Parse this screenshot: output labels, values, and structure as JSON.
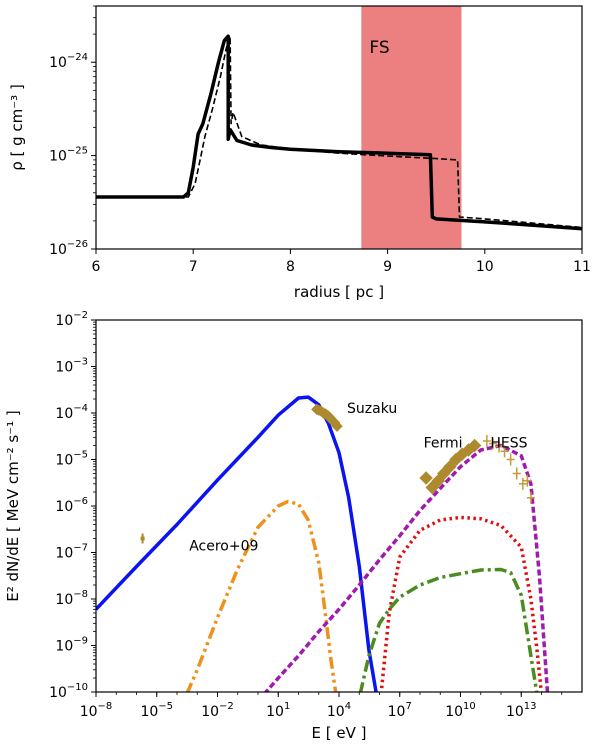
{
  "chart_data": [
    {
      "type": "line",
      "xlabel": "radius [ pc ]",
      "ylabel": "ρ [ g cm⁻³ ]",
      "xlim": [
        6,
        11
      ],
      "ylim": [
        1e-26,
        4e-24
      ],
      "yscale": "log",
      "grid": false,
      "xticks": [
        {
          "v": 6,
          "label": "6"
        },
        {
          "v": 7,
          "label": "7"
        },
        {
          "v": 8,
          "label": "8"
        },
        {
          "v": 9,
          "label": "9"
        },
        {
          "v": 10,
          "label": "10"
        },
        {
          "v": 11,
          "label": "11"
        }
      ],
      "yticks": [
        {
          "v": 1e-26,
          "base": "10",
          "exp": "−26"
        },
        {
          "v": 1e-25,
          "base": "10",
          "exp": "−25"
        },
        {
          "v": 1e-24,
          "base": "10",
          "exp": "−24"
        }
      ],
      "shaded_region": {
        "x0": 8.73,
        "x1": 9.76,
        "label": "FS",
        "color": "#ec8080",
        "label_color": "#e0201a"
      },
      "series": [
        {
          "style": "solid",
          "color": "#000000",
          "x": [
            6.0,
            6.9,
            6.95,
            7.0,
            7.05,
            7.1,
            7.18,
            7.26,
            7.32,
            7.36,
            7.36,
            7.38,
            7.45,
            7.6,
            7.8,
            8.0,
            8.5,
            9.0,
            9.44,
            9.46,
            9.5,
            10.0,
            10.5,
            11.0
          ],
          "y": [
            3.6e-26,
            3.6e-26,
            4e-26,
            7.5e-26,
            1.7e-25,
            2.2e-25,
            4.5e-25,
            1e-24,
            1.7e-24,
            1.9e-24,
            1.5e-25,
            1.9e-25,
            1.45e-25,
            1.3e-25,
            1.22e-25,
            1.17e-25,
            1.1e-25,
            1.06e-25,
            1.02e-25,
            2.2e-26,
            2.1e-26,
            1.95e-26,
            1.8e-26,
            1.65e-26
          ]
        },
        {
          "style": "dashed",
          "color": "#000000",
          "x": [
            6.0,
            6.95,
            7.02,
            7.08,
            7.12,
            7.2,
            7.28,
            7.34,
            7.38,
            7.39,
            7.41,
            7.5,
            7.7,
            8.0,
            8.5,
            9.0,
            9.5,
            9.72,
            9.74,
            10.0,
            11.0
          ],
          "y": [
            3.6e-26,
            3.6e-26,
            5e-26,
            1e-25,
            1.6e-25,
            3.2e-25,
            7e-25,
            1.4e-24,
            1.9e-24,
            2.2e-25,
            2.9e-25,
            1.6e-25,
            1.3e-25,
            1.18e-25,
            1.06e-25,
            9.9e-26,
            9.3e-26,
            9e-26,
            2.2e-26,
            2.1e-26,
            1.7e-26
          ]
        }
      ]
    },
    {
      "type": "line",
      "xlabel": "E [ eV ]",
      "ylabel": "E² dN/dE [ MeV cm⁻² s⁻¹ ]",
      "xscale": "log",
      "yscale": "log",
      "xlim": [
        1e-08,
        1e+16
      ],
      "ylim": [
        1e-10,
        0.01
      ],
      "grid": false,
      "xticks": [
        {
          "v": 1e-08,
          "base": "10",
          "exp": "−8"
        },
        {
          "v": 1e-05,
          "base": "10",
          "exp": "−5"
        },
        {
          "v": 0.01,
          "base": "10",
          "exp": "−2"
        },
        {
          "v": 10,
          "base": "10",
          "exp": "1"
        },
        {
          "v": 10000.0,
          "base": "10",
          "exp": "4"
        },
        {
          "v": 10000000.0,
          "base": "10",
          "exp": "7"
        },
        {
          "v": 10000000000.0,
          "base": "10",
          "exp": "10"
        },
        {
          "v": 10000000000000.0,
          "base": "10",
          "exp": "13"
        }
      ],
      "yticks": [
        {
          "v": 1e-10,
          "base": "10",
          "exp": "−10"
        },
        {
          "v": 1e-09,
          "base": "10",
          "exp": "−9"
        },
        {
          "v": 1e-08,
          "base": "10",
          "exp": "−8"
        },
        {
          "v": 1e-07,
          "base": "10",
          "exp": "−7"
        },
        {
          "v": 1e-06,
          "base": "10",
          "exp": "−6"
        },
        {
          "v": 1e-05,
          "base": "10",
          "exp": "−5"
        },
        {
          "v": 0.0001,
          "base": "10",
          "exp": "−4"
        },
        {
          "v": 0.001,
          "base": "10",
          "exp": "−3"
        },
        {
          "v": 0.01,
          "base": "10",
          "exp": "−2"
        }
      ],
      "series": [
        {
          "style": "solid",
          "color": "#0a14f0",
          "x": [
            1e-08,
            1e-06,
            0.0001,
            0.01,
            1,
            10,
            100,
            300,
            1000,
            3000,
            10000.0,
            30000.0,
            100000.0,
            300000.0,
            700000.0
          ],
          "y": [
            6e-09,
            5e-08,
            4e-07,
            3.6e-06,
            3e-05,
            9e-05,
            0.00021,
            0.00022,
            0.00015,
            6e-05,
            1.4e-05,
            1.5e-06,
            5e-08,
            8e-10,
            9e-11
          ]
        },
        {
          "style": "dashdotdot",
          "color": "#f0901c",
          "x": [
            0.0003,
            0.001,
            0.01,
            0.1,
            1,
            10,
            30,
            100,
            300,
            1000,
            2000,
            4000,
            7000
          ],
          "y": [
            9e-11,
            3e-10,
            4e-09,
            4.5e-08,
            3.5e-07,
            1e-06,
            1.25e-06,
            1.1e-06,
            5e-07,
            6e-08,
            6e-09,
            5e-10,
            9e-11
          ]
        },
        {
          "style": "dashed",
          "color": "#a01ab0",
          "x": [
            2,
            10,
            100,
            1000.0,
            10000.0,
            100000.0,
            1000000.0,
            10000000.0,
            100000000.0,
            1000000000.0,
            10000000000.0,
            100000000000.0,
            1000000000000.0,
            10000000000000.0,
            30000000000000.0,
            80000000000000.0,
            200000000000000.0
          ],
          "y": [
            9e-11,
            2e-10,
            6e-10,
            2e-09,
            6e-09,
            2e-08,
            7e-08,
            2.3e-07,
            8e-07,
            2.4e-06,
            7e-06,
            1.6e-05,
            2e-05,
            1.2e-05,
            3e-06,
            3e-08,
            9e-11
          ]
        },
        {
          "style": "dotted",
          "color": "#e01010",
          "x": [
            1200000.0,
            3000000.0,
            10000000.0,
            100000000.0,
            1000000000.0,
            10000000000.0,
            100000000000.0,
            1000000000000.0,
            10000000000000.0,
            30000000000000.0,
            60000000000000.0,
            100000000000000.0
          ],
          "y": [
            9e-11,
            5e-09,
            8e-08,
            3e-07,
            5e-07,
            5.7e-07,
            5.3e-07,
            3.8e-07,
            1.3e-07,
            1e-08,
            8e-10,
            9e-11
          ]
        },
        {
          "style": "dashdot",
          "color": "#4a8c20",
          "x": [
            110000.0,
            300000.0,
            1000000.0,
            3000000.0,
            10000000.0,
            100000000.0,
            1000000000.0,
            10000000000.0,
            100000000000.0,
            1000000000000.0,
            3000000000000.0,
            10000000000000.0,
            30000000000000.0,
            60000000000000.0
          ],
          "y": [
            9e-11,
            6e-10,
            3e-09,
            6e-09,
            1.1e-08,
            2e-08,
            2.9e-08,
            3.5e-08,
            4.2e-08,
            4.3e-08,
            3.7e-08,
            1.2e-08,
            6e-10,
            9e-11
          ]
        }
      ],
      "markers": {
        "diamond_color": "#ad8a2e",
        "cross_color": "#c49a3a",
        "acero": [
          {
            "x": 2e-06,
            "y": 2e-07
          }
        ],
        "suzaku": [
          {
            "x": 800,
            "y": 0.00012
          },
          {
            "x": 1000,
            "y": 0.000115
          },
          {
            "x": 1300,
            "y": 0.00011
          },
          {
            "x": 1700,
            "y": 0.0001
          },
          {
            "x": 2200,
            "y": 9.5e-05
          },
          {
            "x": 2800,
            "y": 8.8e-05
          },
          {
            "x": 3500,
            "y": 8e-05
          },
          {
            "x": 4500,
            "y": 7e-05
          },
          {
            "x": 6000,
            "y": 6.2e-05
          },
          {
            "x": 8000,
            "y": 5.2e-05
          }
        ],
        "fermi": [
          {
            "x": 200000000.0,
            "y": 4e-06
          },
          {
            "x": 400000000.0,
            "y": 2.5e-06
          },
          {
            "x": 800000000.0,
            "y": 3.5e-06
          },
          {
            "x": 1500000000.0,
            "y": 5e-06
          },
          {
            "x": 3000000000.0,
            "y": 7e-06
          },
          {
            "x": 6000000000.0,
            "y": 1e-05
          },
          {
            "x": 12000000000.0,
            "y": 1.3e-05
          },
          {
            "x": 25000000000.0,
            "y": 1.6e-05
          },
          {
            "x": 50000000000.0,
            "y": 2e-05
          }
        ],
        "hess": [
          {
            "x": 200000000000.0,
            "y": 2.5e-05
          },
          {
            "x": 400000000000.0,
            "y": 2.2e-05
          },
          {
            "x": 800000000000.0,
            "y": 1.9e-05
          },
          {
            "x": 1500000000000.0,
            "y": 1.5e-05
          },
          {
            "x": 3000000000000.0,
            "y": 1e-05
          },
          {
            "x": 6000000000000.0,
            "y": 5e-06
          },
          {
            "x": 12000000000000.0,
            "y": 3e-06
          },
          {
            "x": 20000000000000.0,
            "y": 3.5e-06
          },
          {
            "x": 30000000000000.0,
            "y": 1.5e-06
          }
        ]
      },
      "annotations": [
        {
          "text": "Acero+09",
          "x": 0.0004,
          "y": 1.1e-07
        },
        {
          "text": "Suzaku",
          "x": 25000.0,
          "y": 0.0001
        },
        {
          "text": "Fermi",
          "x": 150000000.0,
          "y": 1.8e-05
        },
        {
          "text": "HESS",
          "x": 300000000000.0,
          "y": 1.8e-05
        }
      ]
    }
  ]
}
